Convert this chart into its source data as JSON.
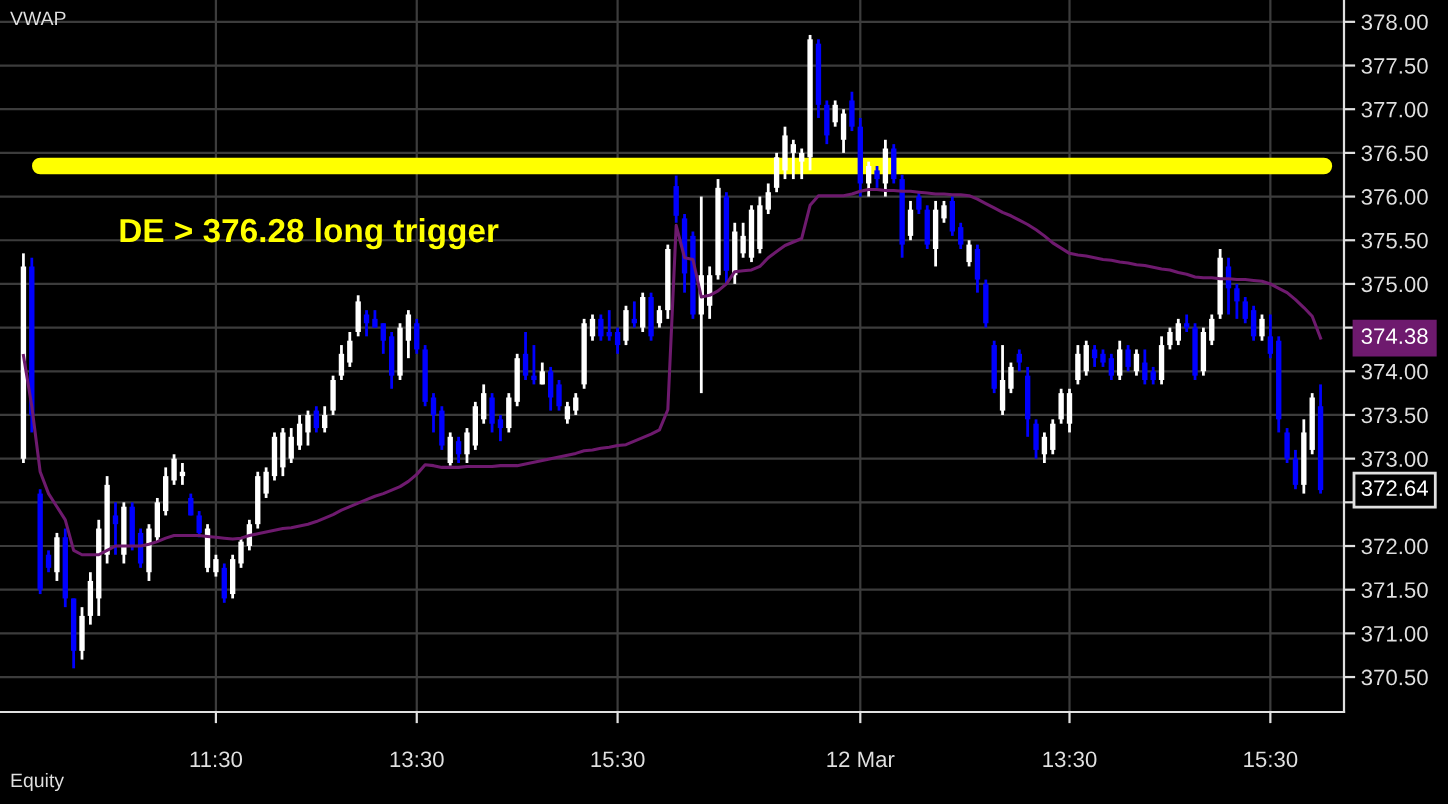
{
  "chart_data": {
    "type": "candlestick",
    "annotations": [
      "VWAP",
      "Equity",
      "374.38",
      "372.64"
    ],
    "categories": [
      null,
      null,
      null,
      null,
      null,
      null,
      null,
      null,
      null,
      null,
      null,
      null,
      null,
      null,
      null,
      null,
      null,
      null,
      null,
      null,
      null,
      null,
      null,
      "11:30",
      null,
      null,
      null,
      null,
      null,
      null,
      null,
      null,
      null,
      null,
      null,
      null,
      null,
      null,
      null,
      null,
      null,
      null,
      null,
      null,
      null,
      null,
      null,
      "13:30",
      null,
      null,
      null,
      null,
      null,
      null,
      null,
      null,
      null,
      null,
      null,
      null,
      null,
      null,
      null,
      null,
      null,
      null,
      null,
      null,
      null,
      null,
      null,
      "15:30",
      null,
      null,
      null,
      null,
      null,
      null,
      null,
      null,
      null,
      null,
      null,
      null,
      null,
      null,
      null,
      null,
      null,
      null,
      null,
      null,
      null,
      null,
      null,
      null,
      null,
      null,
      null,
      null,
      "12 Mar",
      null,
      null,
      null,
      null,
      null,
      null,
      null,
      null,
      null,
      null,
      null,
      null,
      null,
      null,
      null,
      null,
      null,
      null,
      null,
      null,
      null,
      null,
      null,
      null,
      "13:30",
      null,
      null,
      null,
      null,
      null,
      null,
      null,
      null,
      null,
      null,
      null,
      null,
      null,
      null,
      null,
      null,
      null,
      null,
      null,
      null,
      null,
      null,
      null,
      "15:30",
      null,
      null,
      null,
      null,
      null,
      null
    ],
    "ohlc": [
      [
        373.0,
        375.35,
        372.95,
        375.2
      ],
      [
        375.2,
        375.3,
        373.3,
        373.5
      ],
      [
        372.6,
        372.65,
        371.45,
        371.5
      ],
      [
        371.9,
        371.95,
        371.7,
        371.75
      ],
      [
        371.7,
        372.15,
        371.6,
        372.1
      ],
      [
        372.1,
        372.2,
        371.3,
        371.4
      ],
      [
        371.4,
        371.4,
        370.6,
        370.8
      ],
      [
        370.8,
        371.3,
        370.7,
        371.2
      ],
      [
        371.2,
        371.7,
        371.1,
        371.6
      ],
      [
        371.4,
        372.3,
        371.2,
        372.2
      ],
      [
        371.9,
        372.8,
        371.8,
        372.7
      ],
      [
        372.35,
        372.5,
        371.9,
        372.25
      ],
      [
        371.9,
        372.5,
        371.8,
        372.45
      ],
      [
        372.45,
        372.5,
        371.95,
        372.0
      ],
      [
        372.15,
        372.2,
        371.75,
        371.8
      ],
      [
        371.7,
        372.25,
        371.6,
        372.2
      ],
      [
        372.1,
        372.55,
        372.05,
        372.5
      ],
      [
        372.4,
        372.9,
        372.35,
        372.8
      ],
      [
        372.75,
        373.05,
        372.7,
        373.0
      ],
      [
        372.8,
        372.95,
        372.7,
        372.85
      ],
      [
        372.55,
        372.6,
        372.35,
        372.35
      ],
      [
        372.35,
        372.4,
        372.1,
        372.15
      ],
      [
        371.75,
        372.25,
        371.7,
        372.2
      ],
      [
        371.7,
        371.9,
        371.65,
        371.85
      ],
      [
        371.75,
        371.8,
        371.35,
        371.4
      ],
      [
        371.45,
        371.9,
        371.4,
        371.85
      ],
      [
        371.8,
        372.1,
        371.75,
        372.05
      ],
      [
        372.0,
        372.3,
        371.95,
        372.25
      ],
      [
        372.25,
        372.85,
        372.2,
        372.8
      ],
      [
        372.6,
        372.9,
        372.55,
        372.85
      ],
      [
        372.8,
        373.3,
        372.75,
        373.25
      ],
      [
        372.9,
        373.35,
        372.8,
        373.3
      ],
      [
        373.0,
        373.35,
        372.95,
        373.25
      ],
      [
        373.15,
        373.5,
        373.1,
        373.4
      ],
      [
        373.3,
        373.55,
        373.15,
        373.5
      ],
      [
        373.55,
        373.6,
        373.3,
        373.35
      ],
      [
        373.35,
        373.6,
        373.3,
        373.5
      ],
      [
        373.55,
        373.95,
        373.5,
        373.9
      ],
      [
        373.95,
        374.3,
        373.9,
        374.2
      ],
      [
        374.1,
        374.45,
        374.05,
        374.35
      ],
      [
        374.45,
        374.87,
        374.4,
        374.8
      ],
      [
        374.65,
        374.7,
        374.4,
        374.55
      ],
      [
        374.6,
        374.7,
        374.5,
        374.5
      ],
      [
        374.55,
        374.55,
        374.2,
        374.35
      ],
      [
        374.4,
        374.45,
        373.8,
        373.95
      ],
      [
        373.95,
        374.55,
        373.9,
        374.5
      ],
      [
        374.35,
        374.7,
        374.15,
        374.65
      ],
      [
        374.55,
        374.6,
        374.2,
        374.25
      ],
      [
        374.25,
        374.3,
        373.6,
        373.65
      ],
      [
        373.7,
        373.75,
        373.3,
        373.5
      ],
      [
        373.55,
        373.6,
        373.1,
        373.15
      ],
      [
        372.95,
        373.3,
        372.92,
        373.25
      ],
      [
        373.2,
        373.25,
        372.95,
        373.05
      ],
      [
        373.05,
        373.35,
        372.95,
        373.3
      ],
      [
        373.15,
        373.65,
        373.1,
        373.6
      ],
      [
        373.45,
        373.85,
        373.4,
        373.75
      ],
      [
        373.7,
        373.75,
        373.3,
        373.4
      ],
      [
        373.45,
        373.5,
        373.2,
        373.35
      ],
      [
        373.35,
        373.75,
        373.3,
        373.7
      ],
      [
        373.65,
        374.2,
        373.6,
        374.15
      ],
      [
        374.2,
        374.45,
        373.9,
        373.95
      ],
      [
        373.95,
        374.3,
        373.85,
        373.9
      ],
      [
        373.85,
        374.1,
        373.85,
        374.0
      ],
      [
        374.0,
        374.05,
        373.55,
        373.7
      ],
      [
        373.85,
        373.9,
        373.55,
        373.6
      ],
      [
        373.45,
        373.65,
        373.4,
        373.6
      ],
      [
        373.55,
        373.75,
        373.5,
        373.7
      ],
      [
        373.85,
        374.6,
        373.8,
        374.55
      ],
      [
        374.4,
        374.65,
        374.35,
        374.6
      ],
      [
        374.6,
        374.65,
        374.35,
        374.4
      ],
      [
        374.45,
        374.7,
        374.35,
        374.4
      ],
      [
        374.45,
        374.5,
        374.2,
        374.3
      ],
      [
        374.35,
        374.75,
        374.3,
        374.7
      ],
      [
        374.6,
        374.8,
        374.5,
        374.55
      ],
      [
        374.5,
        374.9,
        374.45,
        374.85
      ],
      [
        374.85,
        374.9,
        374.35,
        374.4
      ],
      [
        374.55,
        374.75,
        374.5,
        374.7
      ],
      [
        374.7,
        375.45,
        374.6,
        375.4
      ],
      [
        376.12,
        376.24,
        375.7,
        375.78
      ],
      [
        375.75,
        375.8,
        374.9,
        375.12
      ],
      [
        375.55,
        375.6,
        374.6,
        374.65
      ],
      [
        374.65,
        376.0,
        373.75,
        375.1
      ],
      [
        374.75,
        375.2,
        374.6,
        375.1
      ],
      [
        375.1,
        376.2,
        375.05,
        376.1
      ],
      [
        376.0,
        376.05,
        375.0,
        375.15
      ],
      [
        375.1,
        375.7,
        375.0,
        375.6
      ],
      [
        375.35,
        375.7,
        375.3,
        375.55
      ],
      [
        375.3,
        375.9,
        375.25,
        375.85
      ],
      [
        375.4,
        376.0,
        375.35,
        375.9
      ],
      [
        375.85,
        376.15,
        375.8,
        376.05
      ],
      [
        376.1,
        376.5,
        376.05,
        376.45
      ],
      [
        376.3,
        376.8,
        376.2,
        376.7
      ],
      [
        376.5,
        376.65,
        376.2,
        376.6
      ],
      [
        376.4,
        376.55,
        376.2,
        376.5
      ],
      [
        376.45,
        377.85,
        376.3,
        377.8
      ],
      [
        377.75,
        377.8,
        376.9,
        377.05
      ],
      [
        377.05,
        377.1,
        376.6,
        376.7
      ],
      [
        376.85,
        377.1,
        376.8,
        377.05
      ],
      [
        376.65,
        377.0,
        376.5,
        376.95
      ],
      [
        377.1,
        377.2,
        376.75,
        376.8
      ],
      [
        376.8,
        376.9,
        376.0,
        376.15
      ],
      [
        376.15,
        376.4,
        376.0,
        376.35
      ],
      [
        376.3,
        376.35,
        376.1,
        376.2
      ],
      [
        376.15,
        376.65,
        376.0,
        376.55
      ],
      [
        376.55,
        376.6,
        376.15,
        376.2
      ],
      [
        376.2,
        376.25,
        375.3,
        375.45
      ],
      [
        375.55,
        375.95,
        375.5,
        375.85
      ],
      [
        376.0,
        376.05,
        375.8,
        375.85
      ],
      [
        375.85,
        375.9,
        375.4,
        375.45
      ],
      [
        375.4,
        375.95,
        375.2,
        375.85
      ],
      [
        375.75,
        375.95,
        375.7,
        375.9
      ],
      [
        375.95,
        376.0,
        375.55,
        375.6
      ],
      [
        375.65,
        375.7,
        375.4,
        375.45
      ],
      [
        375.25,
        375.5,
        375.2,
        375.45
      ],
      [
        375.4,
        375.45,
        374.9,
        375.05
      ],
      [
        375.0,
        375.05,
        374.5,
        374.55
      ],
      [
        374.3,
        374.35,
        373.75,
        373.8
      ],
      [
        373.55,
        374.3,
        373.5,
        373.9
      ],
      [
        373.8,
        374.1,
        373.75,
        374.05
      ],
      [
        374.2,
        374.25,
        374.0,
        374.1
      ],
      [
        373.95,
        374.05,
        373.25,
        373.45
      ],
      [
        373.4,
        373.45,
        373.0,
        373.1
      ],
      [
        373.05,
        373.3,
        372.95,
        373.25
      ],
      [
        373.1,
        373.45,
        373.05,
        373.4
      ],
      [
        373.45,
        373.8,
        373.4,
        373.75
      ],
      [
        373.4,
        373.8,
        373.3,
        373.75
      ],
      [
        373.9,
        374.3,
        373.85,
        374.2
      ],
      [
        374.0,
        374.35,
        373.95,
        374.3
      ],
      [
        374.25,
        374.3,
        374.05,
        374.15
      ],
      [
        374.2,
        374.25,
        374.05,
        374.1
      ],
      [
        374.15,
        374.2,
        373.9,
        373.95
      ],
      [
        373.95,
        374.35,
        373.9,
        374.25
      ],
      [
        374.25,
        374.3,
        374.0,
        374.05
      ],
      [
        374.0,
        374.25,
        373.95,
        374.2
      ],
      [
        374.1,
        374.25,
        373.85,
        373.9
      ],
      [
        374.0,
        374.05,
        373.85,
        373.9
      ],
      [
        373.9,
        374.4,
        373.85,
        374.3
      ],
      [
        374.3,
        374.5,
        374.25,
        374.45
      ],
      [
        374.35,
        374.6,
        374.3,
        374.55
      ],
      [
        374.55,
        374.65,
        374.45,
        374.5
      ],
      [
        374.5,
        374.55,
        373.9,
        373.95
      ],
      [
        374.0,
        374.5,
        373.95,
        374.45
      ],
      [
        374.35,
        374.65,
        374.3,
        374.6
      ],
      [
        374.65,
        375.4,
        374.6,
        375.3
      ],
      [
        375.2,
        375.3,
        374.65,
        374.95
      ],
      [
        374.95,
        375.0,
        374.6,
        374.8
      ],
      [
        374.8,
        374.85,
        374.55,
        374.6
      ],
      [
        374.7,
        374.75,
        374.35,
        374.4
      ],
      [
        374.4,
        374.65,
        374.35,
        374.6
      ],
      [
        374.4,
        374.65,
        374.15,
        374.2
      ],
      [
        374.35,
        374.4,
        373.3,
        373.45
      ],
      [
        373.3,
        373.35,
        372.95,
        373.0
      ],
      [
        373.0,
        373.1,
        372.65,
        372.7
      ],
      [
        372.7,
        373.45,
        372.6,
        373.3
      ],
      [
        373.1,
        373.75,
        373.05,
        373.7
      ],
      [
        373.6,
        373.85,
        372.6,
        372.64
      ]
    ],
    "colors": [
      "#ffffff",
      "#0000ff",
      "#0000ff",
      "#0000ff",
      "#ffffff",
      "#0000ff",
      "#0000ff",
      "#ffffff",
      "#ffffff",
      "#ffffff",
      "#ffffff",
      "#0000ff",
      "#ffffff",
      "#0000ff",
      "#0000ff",
      "#ffffff",
      "#ffffff",
      "#ffffff",
      "#ffffff",
      "#ffffff",
      "#0000ff",
      "#0000ff",
      "#ffffff",
      "#ffffff",
      "#0000ff",
      "#ffffff",
      "#ffffff",
      "#ffffff",
      "#ffffff",
      "#ffffff",
      "#ffffff",
      "#ffffff",
      "#ffffff",
      "#ffffff",
      "#ffffff",
      "#0000ff",
      "#ffffff",
      "#ffffff",
      "#ffffff",
      "#ffffff",
      "#ffffff",
      "#0000ff",
      "#0000ff",
      "#0000ff",
      "#0000ff",
      "#ffffff",
      "#ffffff",
      "#0000ff",
      "#0000ff",
      "#0000ff",
      "#0000ff",
      "#ffffff",
      "#0000ff",
      "#ffffff",
      "#ffffff",
      "#ffffff",
      "#0000ff",
      "#0000ff",
      "#ffffff",
      "#ffffff",
      "#0000ff",
      "#0000ff",
      "#ffffff",
      "#0000ff",
      "#0000ff",
      "#ffffff",
      "#ffffff",
      "#ffffff",
      "#ffffff",
      "#0000ff",
      "#0000ff",
      "#0000ff",
      "#ffffff",
      "#0000ff",
      "#ffffff",
      "#0000ff",
      "#ffffff",
      "#ffffff",
      "#0000ff",
      "#0000ff",
      "#0000ff",
      "#ffffff",
      "#ffffff",
      "#ffffff",
      "#0000ff",
      "#ffffff",
      "#ffffff",
      "#ffffff",
      "#ffffff",
      "#ffffff",
      "#ffffff",
      "#ffffff",
      "#ffffff",
      "#ffffff",
      "#ffffff",
      "#0000ff",
      "#0000ff",
      "#ffffff",
      "#ffffff",
      "#0000ff",
      "#0000ff",
      "#ffffff",
      "#0000ff",
      "#ffffff",
      "#0000ff",
      "#0000ff",
      "#ffffff",
      "#0000ff",
      "#0000ff",
      "#ffffff",
      "#ffffff",
      "#0000ff",
      "#0000ff",
      "#ffffff",
      "#0000ff",
      "#0000ff",
      "#0000ff",
      "#ffffff",
      "#ffffff",
      "#0000ff",
      "#0000ff",
      "#0000ff",
      "#ffffff",
      "#ffffff",
      "#ffffff",
      "#ffffff",
      "#ffffff",
      "#ffffff",
      "#0000ff",
      "#0000ff",
      "#0000ff",
      "#ffffff",
      "#0000ff",
      "#ffffff",
      "#0000ff",
      "#0000ff",
      "#ffffff",
      "#ffffff",
      "#ffffff",
      "#0000ff",
      "#0000ff",
      "#ffffff",
      "#ffffff",
      "#ffffff",
      "#0000ff",
      "#0000ff",
      "#0000ff",
      "#0000ff",
      "#ffffff",
      "#0000ff",
      "#0000ff",
      "#0000ff",
      "#0000ff",
      "#ffffff",
      "#ffffff",
      "#0000ff"
    ],
    "series": [
      {
        "type": "line",
        "color": "#6e1a6e",
        "values": [
          374.18,
          373.6,
          372.85,
          372.6,
          372.45,
          372.3,
          371.95,
          371.9,
          371.9,
          371.9,
          371.95,
          372.0,
          372.0,
          372.0,
          372.0,
          372.02,
          372.05,
          372.09,
          372.12,
          372.12,
          372.12,
          372.12,
          372.11,
          372.1,
          372.09,
          372.08,
          372.09,
          372.12,
          372.14,
          372.16,
          372.18,
          372.2,
          372.21,
          372.23,
          372.25,
          372.28,
          372.32,
          372.36,
          372.41,
          372.45,
          372.49,
          372.53,
          372.57,
          372.6,
          372.64,
          372.68,
          372.74,
          372.82,
          372.93,
          372.92,
          372.9,
          372.9,
          372.9,
          372.91,
          372.91,
          372.91,
          372.91,
          372.92,
          372.92,
          372.92,
          372.94,
          372.96,
          372.98,
          373.0,
          373.02,
          373.04,
          373.06,
          373.09,
          373.1,
          373.12,
          373.13,
          373.15,
          373.16,
          373.2,
          373.24,
          373.28,
          373.33,
          373.56,
          375.67,
          375.3,
          375.28,
          374.85,
          374.87,
          374.92,
          375.0,
          375.14,
          375.15,
          375.16,
          375.2,
          375.3,
          375.37,
          375.44,
          375.48,
          375.52,
          375.9,
          376.01,
          376.01,
          376.01,
          376.01,
          376.03,
          376.06,
          376.08,
          376.08,
          376.07,
          376.07,
          376.06,
          376.06,
          376.05,
          376.04,
          376.03,
          376.03,
          376.02,
          376.02,
          376.01,
          375.97,
          375.92,
          375.87,
          375.82,
          375.78,
          375.73,
          375.68,
          375.62,
          375.55,
          375.47,
          375.41,
          375.35,
          375.33,
          375.32,
          375.3,
          375.28,
          375.27,
          375.25,
          375.24,
          375.22,
          375.21,
          375.19,
          375.17,
          375.16,
          375.13,
          375.11,
          375.08,
          375.07,
          375.07,
          375.06,
          375.06,
          375.05,
          375.05,
          375.04,
          375.03,
          375.0,
          374.95,
          374.9,
          374.82,
          374.73,
          374.63,
          374.38
        ]
      }
    ],
    "ref_lines": [
      {
        "axis": "y",
        "value": 376.35,
        "label": "DE > 376.28 long trigger",
        "color": "#ffff00"
      }
    ],
    "ylim": [
      370.1,
      378.25
    ],
    "yticks": [
      {
        "value": 370.5,
        "label": "370.50"
      },
      {
        "value": 371,
        "label": "371.00"
      },
      {
        "value": 371.5,
        "label": "371.50"
      },
      {
        "value": 372,
        "label": "372.00"
      },
      {
        "value": 372.5,
        "label": null
      },
      {
        "value": 373,
        "label": "373.00"
      },
      {
        "value": 373.5,
        "label": "373.50"
      },
      {
        "value": 374,
        "label": "374.00"
      },
      {
        "value": 374.5,
        "label": null
      },
      {
        "value": 375,
        "label": "375.00"
      },
      {
        "value": 375.5,
        "label": "375.50"
      },
      {
        "value": 376,
        "label": "376.00"
      },
      {
        "value": 376.5,
        "label": "376.50"
      },
      {
        "value": 377,
        "label": "377.00"
      },
      {
        "value": 377.5,
        "label": "377.50"
      },
      {
        "value": 378,
        "label": "378.00"
      }
    ],
    "grid": true,
    "legend": false
  }
}
